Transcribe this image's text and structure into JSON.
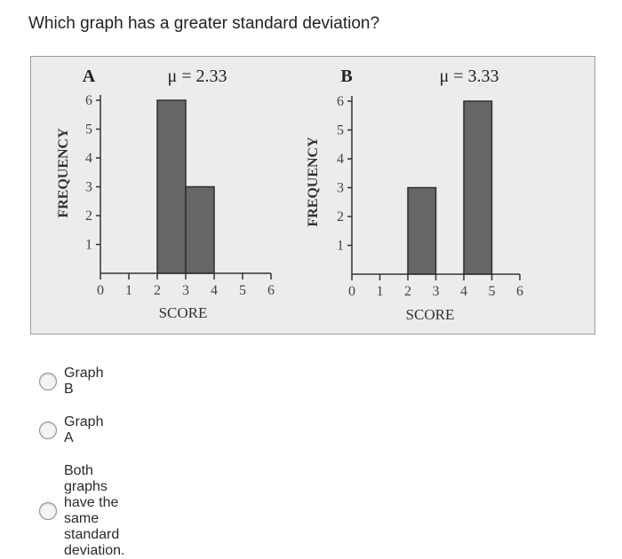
{
  "question": "Which graph has a greater standard deviation?",
  "chart_data": [
    {
      "type": "bar",
      "title": "A",
      "annotation": "μ = 2.33",
      "xlabel": "SCORE",
      "ylabel": "FREQUENCY",
      "x_ticks": [
        "0",
        "1",
        "2",
        "3",
        "4",
        "5",
        "6"
      ],
      "y_ticks": [
        "1",
        "2",
        "3",
        "4",
        "5",
        "6"
      ],
      "xlim": [
        0,
        6
      ],
      "ylim": [
        0,
        6
      ],
      "bars": [
        {
          "x_start": 2,
          "x_end": 3,
          "value": 6
        },
        {
          "x_start": 3,
          "x_end": 4,
          "value": 3
        }
      ],
      "bar_color": "#666666"
    },
    {
      "type": "bar",
      "title": "B",
      "annotation": "μ = 3.33",
      "xlabel": "SCORE",
      "ylabel": "FREQUENCY",
      "x_ticks": [
        "0",
        "1",
        "2",
        "3",
        "4",
        "5",
        "6"
      ],
      "y_ticks": [
        "1",
        "2",
        "3",
        "4",
        "5",
        "6"
      ],
      "xlim": [
        0,
        6
      ],
      "ylim": [
        0,
        6
      ],
      "bars": [
        {
          "x_start": 2,
          "x_end": 3,
          "value": 3
        },
        {
          "x_start": 4,
          "x_end": 5,
          "value": 6
        }
      ],
      "bar_color": "#666666"
    }
  ],
  "options": [
    {
      "label": "Graph B",
      "selected": false
    },
    {
      "label": "Graph A",
      "selected": false
    },
    {
      "label": "Both graphs have the same standard deviation.",
      "selected": false
    }
  ]
}
